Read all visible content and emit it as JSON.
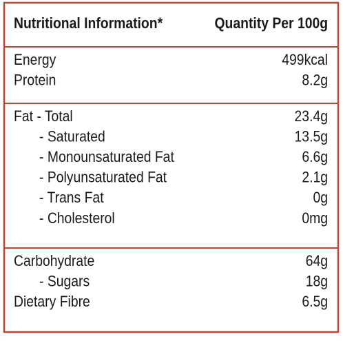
{
  "header": {
    "label": "Nutritional Information*",
    "quantity": "Quantity Per 100g"
  },
  "sections": [
    {
      "rows": [
        {
          "label": "Energy",
          "value": "499kcal"
        },
        {
          "label": "Protein",
          "value": "8.2g"
        }
      ]
    },
    {
      "rows": [
        {
          "label": "Fat - Total",
          "value": "23.4g"
        },
        {
          "label": "- Saturated",
          "value": "13.5g"
        },
        {
          "label": "- Monounsaturated Fat",
          "value": "6.6g"
        },
        {
          "label": "- Polyunsaturated Fat",
          "value": "2.1g"
        },
        {
          "label": "- Trans Fat",
          "value": "0g"
        },
        {
          "label": "- Cholesterol",
          "value": "0mg"
        }
      ]
    },
    {
      "rows": [
        {
          "label": "Carbohydrate",
          "value": "64g"
        },
        {
          "label": "- Sugars",
          "value": "18g"
        },
        {
          "label": "Dietary Fibre",
          "value": "6.5g"
        }
      ]
    }
  ]
}
